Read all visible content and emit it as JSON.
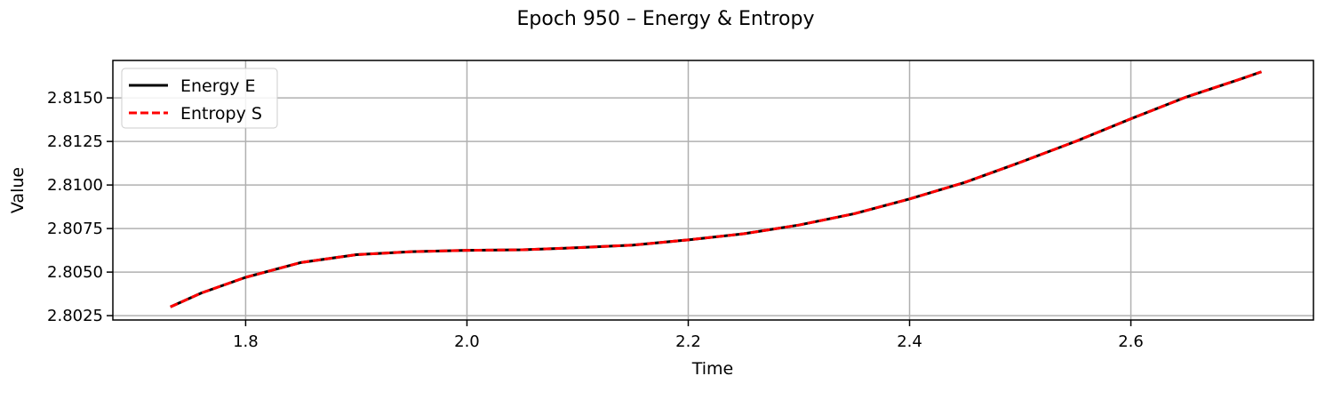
{
  "chart_data": {
    "type": "line",
    "title": "Epoch 950 – Energy & Entropy",
    "xlabel": "Time",
    "ylabel": "Value",
    "xlim": [
      1.68,
      2.765
    ],
    "ylim": [
      2.80225,
      2.81715
    ],
    "xticks": [
      1.8,
      2.0,
      2.2,
      2.4,
      2.6
    ],
    "xtick_labels": [
      "1.8",
      "2.0",
      "2.2",
      "2.4",
      "2.6"
    ],
    "yticks": [
      2.8025,
      2.805,
      2.8075,
      2.81,
      2.8125,
      2.815
    ],
    "ytick_labels": [
      "2.8025",
      "2.8050",
      "2.8075",
      "2.8100",
      "2.8125",
      "2.8150"
    ],
    "grid": true,
    "legend_position": "top-left",
    "series": [
      {
        "name": "Energy E",
        "color": "#000000",
        "style": "solid",
        "x": [
          1.732,
          1.76,
          1.8,
          1.85,
          1.9,
          1.95,
          2.0,
          2.05,
          2.1,
          2.15,
          2.2,
          2.25,
          2.3,
          2.35,
          2.4,
          2.45,
          2.5,
          2.55,
          2.6,
          2.65,
          2.7,
          2.718
        ],
        "y": [
          2.803,
          2.8038,
          2.8047,
          2.80555,
          2.806,
          2.80617,
          2.80625,
          2.80628,
          2.8064,
          2.80655,
          2.80685,
          2.8072,
          2.8077,
          2.80835,
          2.8092,
          2.81015,
          2.8113,
          2.8125,
          2.8138,
          2.81505,
          2.8161,
          2.8165
        ]
      },
      {
        "name": "Entropy S",
        "color": "#ff0000",
        "style": "dashed",
        "x": [
          1.732,
          1.76,
          1.8,
          1.85,
          1.9,
          1.95,
          2.0,
          2.05,
          2.1,
          2.15,
          2.2,
          2.25,
          2.3,
          2.35,
          2.4,
          2.45,
          2.5,
          2.55,
          2.6,
          2.65,
          2.7,
          2.718
        ],
        "y": [
          2.803,
          2.8038,
          2.8047,
          2.80555,
          2.806,
          2.80617,
          2.80625,
          2.80628,
          2.8064,
          2.80655,
          2.80685,
          2.8072,
          2.8077,
          2.80835,
          2.8092,
          2.81015,
          2.8113,
          2.8125,
          2.8138,
          2.81505,
          2.8161,
          2.8165
        ]
      }
    ]
  }
}
